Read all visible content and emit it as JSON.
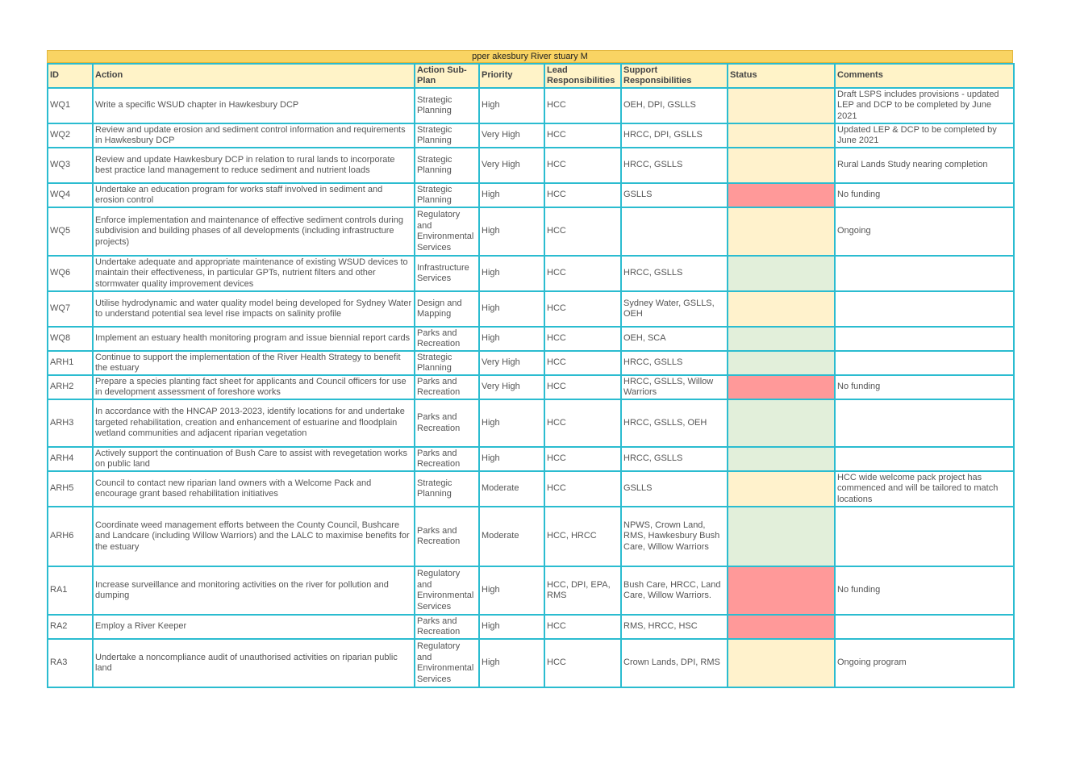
{
  "title": "pper     akesbury River     stuary         M",
  "headers": [
    "ID",
    "Action",
    "Action Sub-Plan",
    "Priority",
    "Lead Responsibilities",
    "Support Responsibilities",
    "Status",
    "Comments"
  ],
  "colors": {
    "header_bg": "#fff3c8",
    "title_bg": "#f9d463",
    "border": "#2bbcd0",
    "amber": "#fff2cc",
    "red": "#ff9999",
    "green": "#e2efda"
  },
  "rows": [
    {
      "id": "WQ1",
      "action": "Write a specific WSUD chapter in Hawkesbury DCP",
      "subplan": "Strategic Planning",
      "priority": "High",
      "lead": "HCC",
      "support": "OEH, DPI, GSLLS",
      "status": "amber",
      "comments": "Draft LSPS includes provisions - updated LEP and DCP to be completed by June 2021"
    },
    {
      "id": "WQ2",
      "action": "Review and update erosion and sediment control information and requirements in Hawkesbury DCP",
      "subplan": "Strategic Planning",
      "priority": "Very High",
      "lead": "HCC",
      "support": "HRCC, DPI, GSLLS",
      "status": "amber",
      "comments": "Updated LEP & DCP to be completed by June 2021"
    },
    {
      "id": "WQ3",
      "action": "Review and update Hawkesbury DCP in relation to rural lands to incorporate best practice land management to reduce sediment and nutrient loads",
      "subplan": "Strategic Planning",
      "priority": "Very High",
      "lead": "HCC",
      "support": " HRCC, GSLLS",
      "status": "amber",
      "comments": "Rural Lands Study nearing completion"
    },
    {
      "id": "WQ4",
      "action": "Undertake an education program for works staff involved in sediment and erosion control",
      "subplan": "Strategic Planning",
      "priority": "High",
      "lead": "HCC",
      "support": "GSLLS",
      "status": "red",
      "comments": "No funding"
    },
    {
      "id": "WQ5",
      "action": "Enforce implementation and maintenance of effective sediment controls during subdivision and building phases of all developments (including infrastructure projects)",
      "subplan": "Regulatory and Environmental Services",
      "priority": "High",
      "lead": "HCC",
      "support": "",
      "status": "amber",
      "comments": "Ongoing"
    },
    {
      "id": "WQ6",
      "action": "Undertake adequate and appropriate maintenance of existing WSUD devices to maintain their effectiveness, in particular GPTs, nutrient filters and other stormwater quality improvement devices",
      "subplan": "Infrastructure Services",
      "priority": "High",
      "lead": "HCC",
      "support": " HRCC, GSLLS",
      "status": "green",
      "comments": ""
    },
    {
      "id": "WQ7",
      "action": "Utilise hydrodynamic and water quality model being developed for Sydney Water to understand potential sea level rise impacts on salinity profile",
      "subplan": "Design and Mapping",
      "priority": "High",
      "lead": "HCC",
      "support": "Sydney Water, GSLLS, OEH",
      "status": "amber",
      "comments": ""
    },
    {
      "id": "WQ8",
      "action": "Implement an estuary health monitoring program and issue biennial report cards",
      "subplan": "Parks and Recreation",
      "priority": "High",
      "lead": "HCC",
      "support": "OEH, SCA",
      "status": "green",
      "comments": ""
    },
    {
      "id": "ARH1",
      "action": "Continue to support the implementation of the River Health Strategy to benefit the estuary",
      "subplan": "Strategic Planning",
      "priority": "Very High",
      "lead": "HCC",
      "support": " HRCC, GSLLS",
      "status": "green",
      "comments": ""
    },
    {
      "id": "ARH2",
      "action": "Prepare a species planting fact sheet for applicants and Council officers for use in development assessment of foreshore works",
      "subplan": "Parks and Recreation",
      "priority": "Very High",
      "lead": "HCC",
      "support": "HRCC, GSLLS, Willow Warriors",
      "status": "red",
      "comments": "No funding"
    },
    {
      "id": "ARH3",
      "action": "In accordance with the HNCAP 2013-2023, identify locations for and undertake targeted rehabilitation, creation and enhancement of estuarine and floodplain wetland communities and adjacent riparian vegetation",
      "subplan": "Parks and Recreation",
      "priority": "High",
      "lead": "HCC",
      "support": "HRCC, GSLLS, OEH",
      "status": "green",
      "comments": ""
    },
    {
      "id": "ARH4",
      "action": "Actively support the continuation of Bush Care to assist with revegetation works on public land",
      "subplan": "Parks and Recreation",
      "priority": "High",
      "lead": "HCC",
      "support": " HRCC, GSLLS",
      "status": "green",
      "comments": ""
    },
    {
      "id": "ARH5",
      "action": "Council to contact new riparian land owners with a     Welcome Pack     and encourage grant based rehabilitation initiatives",
      "subplan": "Strategic Planning",
      "priority": "Moderate",
      "lead": "HCC",
      "support": "GSLLS",
      "status": "amber",
      "comments": "HCC wide welcome pack project has commenced and will be tailored to match locations"
    },
    {
      "id": "ARH6",
      "action": "Coordinate weed management efforts between the County Council, Bushcare and Landcare (including Willow Warriors) and the LALC to maximise benefits for the estuary",
      "subplan": "Parks and Recreation",
      "priority": "Moderate",
      "lead": "HCC, HRCC",
      "support": "NPWS, Crown Land, RMS, Hawkesbury Bush Care, Willow Warriors",
      "status": "green",
      "comments": ""
    },
    {
      "id": "RA1",
      "action": "Increase surveillance and monitoring activities on the river for pollution and dumping",
      "subplan": "Regulatory and Environmental Services",
      "priority": "High",
      "lead": "HCC, DPI, EPA, RMS",
      "support": " Bush Care, HRCC, Land Care, Willow Warriors.",
      "status": "red",
      "comments": "No funding"
    },
    {
      "id": "RA2",
      "action": "Employ a River Keeper",
      "subplan": "Parks and Recreation",
      "priority": "High",
      "lead": "HCC",
      "support": "RMS, HRCC, HSC",
      "status": "red",
      "comments": ""
    },
    {
      "id": "RA3",
      "action": "Undertake a noncompliance audit of unauthorised activities on riparian public land",
      "subplan": "Regulatory and Environmental Services",
      "priority": "High",
      "lead": "HCC",
      "support": " Crown Lands, DPI, RMS",
      "status": "amber",
      "comments": "Ongoing program"
    }
  ]
}
